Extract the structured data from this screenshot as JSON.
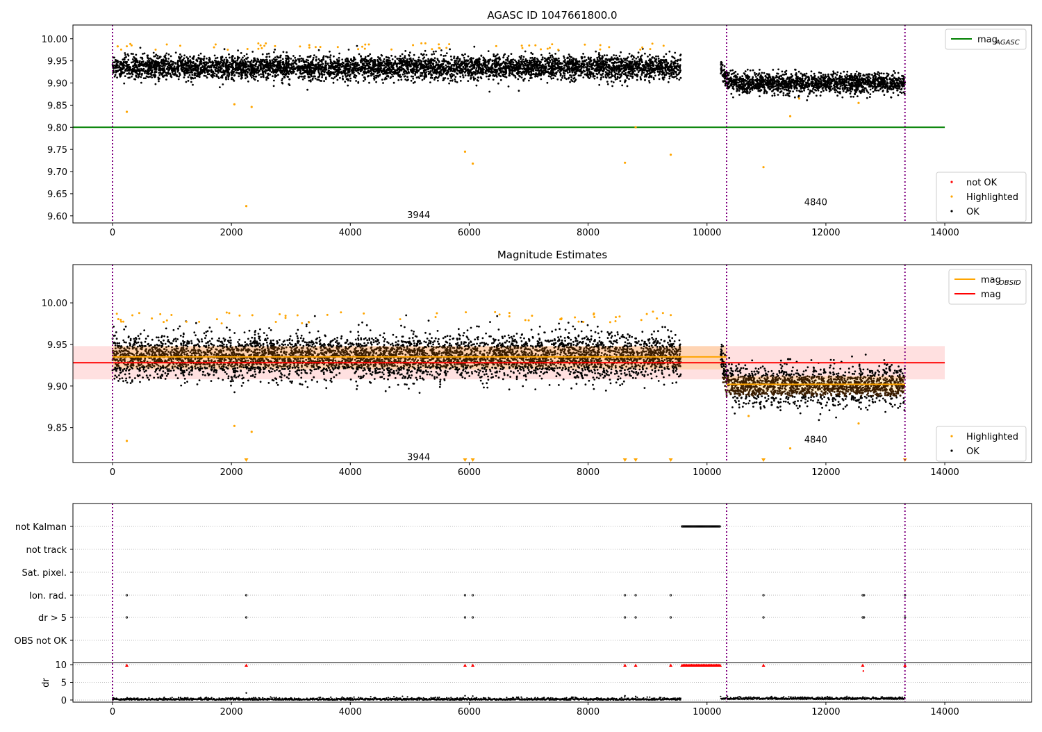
{
  "chart_data": [
    {
      "type": "scatter",
      "title": "AGASC ID 1047661800.0",
      "xlim": [
        -666,
        15460
      ],
      "ylim": [
        9.584,
        10.031
      ],
      "xticks": [
        0,
        2000,
        4000,
        6000,
        8000,
        10000,
        12000,
        14000
      ],
      "xtick_labels": [
        "0",
        "2000",
        "4000",
        "6000",
        "8000",
        "10000",
        "12000",
        "14000"
      ],
      "yticks": [
        9.6,
        9.65,
        9.7,
        9.75,
        9.8,
        9.85,
        9.9,
        9.95,
        10.0
      ],
      "ytick_labels": [
        "9.60",
        "9.65",
        "9.70",
        "9.75",
        "9.80",
        "9.85",
        "9.90",
        "9.95",
        "10.00"
      ],
      "vlines": [
        0,
        10330,
        13330
      ],
      "hlines": [
        {
          "name": "mag_AGASC",
          "y": 9.8,
          "x": [
            -666,
            14000
          ],
          "color": "#008000"
        }
      ],
      "segments": [
        {
          "x": [
            0,
            9560
          ],
          "mean": 9.935,
          "std": 0.013
        },
        {
          "x": [
            10230,
            13330
          ],
          "mean": 9.9,
          "std": 0.011,
          "start_offset": 0.04
        }
      ],
      "highlighted_outliers": [
        [
          240,
          9.835
        ],
        [
          2050,
          9.852
        ],
        [
          2340,
          9.846
        ],
        [
          2250,
          9.622
        ],
        [
          5930,
          9.745
        ],
        [
          6060,
          9.718
        ],
        [
          8620,
          9.72
        ],
        [
          8800,
          9.8
        ],
        [
          9390,
          9.738
        ],
        [
          10950,
          9.71
        ],
        [
          11400,
          9.825
        ],
        [
          11550,
          9.865
        ],
        [
          12550,
          9.855
        ]
      ],
      "annotations": [
        {
          "text": "3944",
          "x": 5150,
          "y": 9.603
        },
        {
          "text": "4840",
          "x": 11830,
          "y": 9.632
        }
      ],
      "legend_top": [
        {
          "label": "mag",
          "sub": "AGASC",
          "color": "#008000"
        }
      ],
      "legend_bottom": [
        {
          "label": "not OK",
          "color": "#ff0000"
        },
        {
          "label": "Highlighted",
          "color": "#ffa500"
        },
        {
          "label": "OK",
          "color": "#000000"
        }
      ]
    },
    {
      "type": "scatter",
      "title": "Magnitude Estimates",
      "xlim": [
        -666,
        15460
      ],
      "ylim": [
        9.808,
        10.046
      ],
      "xticks": [
        0,
        2000,
        4000,
        6000,
        8000,
        10000,
        12000,
        14000
      ],
      "xtick_labels": [
        "0",
        "2000",
        "4000",
        "6000",
        "8000",
        "10000",
        "12000",
        "14000"
      ],
      "yticks": [
        9.85,
        9.9,
        9.95,
        10.0
      ],
      "ytick_labels": [
        "9.85",
        "9.90",
        "9.95",
        "10.00"
      ],
      "vlines": [
        0,
        10330,
        13330
      ],
      "mag_obsid": [
        {
          "x": [
            0,
            10330
          ],
          "y": 9.935,
          "band": [
            9.92,
            9.948
          ]
        },
        {
          "x": [
            10330,
            13330
          ],
          "y": 9.902,
          "band": [
            9.893,
            9.912
          ]
        }
      ],
      "mag": {
        "x": [
          -666,
          14000
        ],
        "y": 9.928,
        "band": [
          9.908,
          9.948
        ]
      },
      "below_range_markers": [
        2250,
        5930,
        6060,
        8620,
        8800,
        9390,
        10950,
        13330
      ],
      "highlighted_outliers": [
        [
          240,
          9.834
        ],
        [
          2050,
          9.852
        ],
        [
          2340,
          9.845
        ],
        [
          11400,
          9.825
        ],
        [
          10700,
          9.864
        ],
        [
          12550,
          9.855
        ]
      ],
      "annotations": [
        {
          "text": "3944",
          "x": 5150,
          "y": 9.815
        },
        {
          "text": "4840",
          "x": 11830,
          "y": 9.836
        }
      ],
      "legend_top": [
        {
          "label": "mag",
          "sub": "OBSID",
          "color": "#ffa500"
        },
        {
          "label": "mag",
          "sub": "",
          "color": "#ff0000"
        }
      ],
      "legend_bottom": [
        {
          "label": "Highlighted",
          "color": "#ffa500"
        },
        {
          "label": "OK",
          "color": "#000000"
        }
      ]
    },
    {
      "type": "scatter",
      "xlim": [
        -666,
        15460
      ],
      "xticks": [
        0,
        2000,
        4000,
        6000,
        8000,
        10000,
        12000,
        14000
      ],
      "xtick_labels": [
        "0",
        "2000",
        "4000",
        "6000",
        "8000",
        "10000",
        "12000",
        "14000"
      ],
      "flag_labels": [
        "not Kalman",
        "not track",
        "Sat. pixel.",
        "Ion. rad.",
        "dr > 5",
        "OBS not OK"
      ],
      "flags": {
        "not Kalman": {
          "range": [
            9580,
            10220
          ]
        },
        "Ion. rad.": {
          "x": [
            240,
            2250,
            5930,
            6060,
            8620,
            8800,
            9390,
            10950,
            12620,
            12640,
            13330
          ]
        },
        "dr > 5": {
          "x": [
            240,
            2250,
            5930,
            6060,
            8620,
            8800,
            9390,
            10950,
            12620,
            12640,
            13330
          ]
        }
      },
      "dr": {
        "ylabel": "dr",
        "ylim": [
          -0.6,
          10.6
        ],
        "yticks": [
          0,
          5,
          10
        ],
        "ytick_labels": [
          "0",
          "5",
          "10"
        ],
        "clipped_at_10": {
          "x": [
            240,
            2250,
            5930,
            6060,
            8620,
            8800,
            9390,
            10950,
            12620,
            13330
          ],
          "range": [
            9580,
            10220
          ]
        },
        "extra_points": [
          [
            12630,
            8.2
          ],
          [
            2250,
            2.0
          ],
          [
            5930,
            1.2
          ],
          [
            6060,
            1.1
          ],
          [
            8620,
            1.2
          ],
          [
            8800,
            1.0
          ]
        ],
        "typical": 0.3
      },
      "vlines": [
        0,
        10330,
        13330
      ]
    }
  ]
}
